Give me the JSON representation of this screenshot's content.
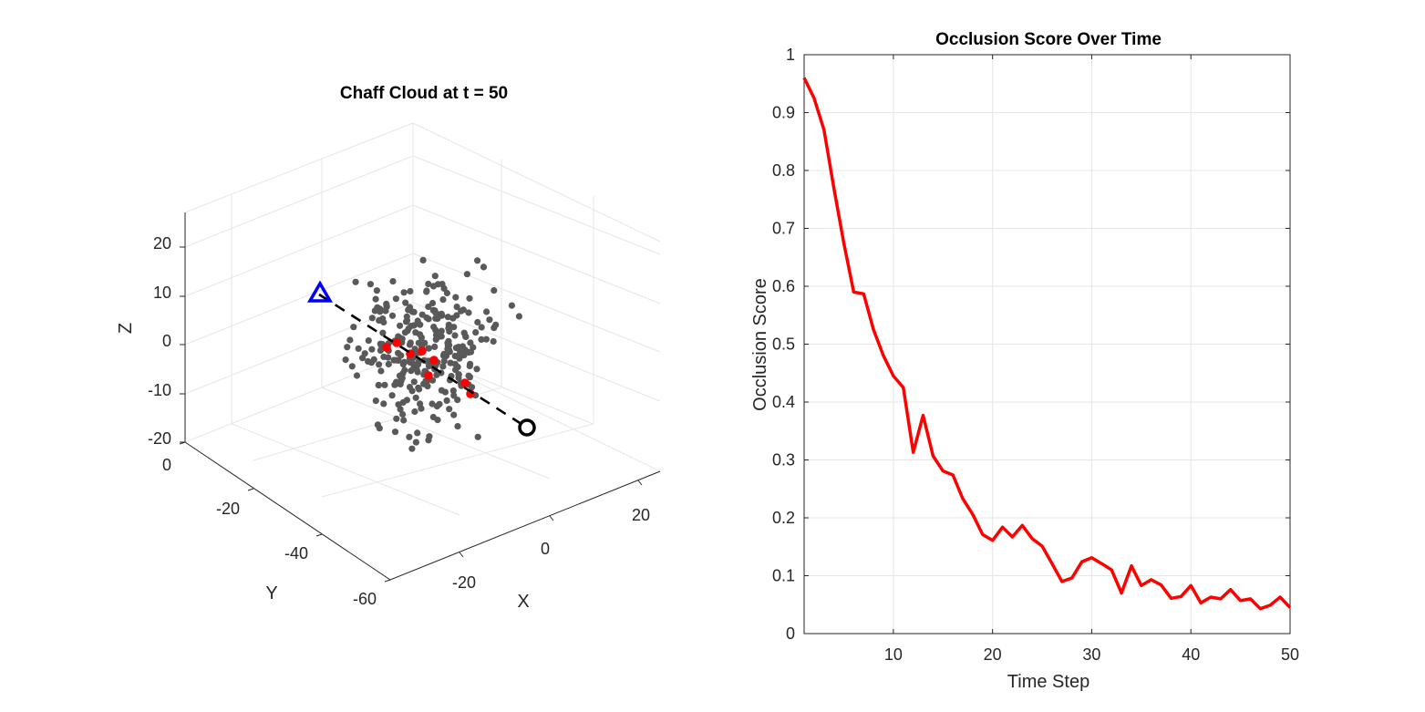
{
  "chart_data": [
    {
      "type": "scatter3d",
      "title": "Chaff Cloud at t = 50",
      "xlabel": "X",
      "ylabel": "Y",
      "zlabel": "Z",
      "x_ticks": [
        "-20",
        "0",
        "20"
      ],
      "y_ticks": [
        "0",
        "-20",
        "-40",
        "-60"
      ],
      "z_ticks": [
        "20",
        "10",
        "0",
        "-10",
        "-20"
      ],
      "xlim": [
        -35,
        35
      ],
      "ylim": [
        -60,
        0
      ],
      "zlim": [
        -20,
        25
      ],
      "grid": true,
      "series": [
        {
          "marker": "dot",
          "color": "#595959",
          "count": 300
        },
        {
          "marker": "dot",
          "color": "#ff0000",
          "count": 8
        },
        {
          "marker": "dashed-line",
          "color": "#000000"
        },
        {
          "marker": "triangle",
          "color": "#0000ff"
        },
        {
          "marker": "circle",
          "color": "#000000"
        }
      ]
    },
    {
      "type": "line",
      "title": "Occlusion Score Over Time",
      "xlabel": "Time Step",
      "ylabel": "Occlusion Score",
      "xlim": [
        1,
        50
      ],
      "ylim": [
        0,
        1
      ],
      "x_ticks": [
        10,
        20,
        30,
        40,
        50
      ],
      "y_ticks": [
        0,
        0.1,
        0.2,
        0.3,
        0.4,
        0.5,
        0.6,
        0.7,
        0.8,
        0.9,
        1
      ],
      "grid": true,
      "color": "#ff0000",
      "x": [
        1,
        2,
        3,
        4,
        5,
        6,
        7,
        8,
        9,
        10,
        11,
        12,
        13,
        14,
        15,
        16,
        17,
        18,
        19,
        20,
        21,
        22,
        23,
        24,
        25,
        26,
        27,
        28,
        29,
        30,
        31,
        32,
        33,
        34,
        35,
        36,
        37,
        38,
        39,
        40,
        41,
        42,
        43,
        44,
        45,
        46,
        47,
        48,
        49,
        50
      ],
      "y": [
        0.96,
        0.925,
        0.87,
        0.77,
        0.675,
        0.59,
        0.587,
        0.525,
        0.48,
        0.445,
        0.425,
        0.313,
        0.377,
        0.307,
        0.281,
        0.274,
        0.233,
        0.206,
        0.171,
        0.161,
        0.184,
        0.167,
        0.187,
        0.164,
        0.151,
        0.121,
        0.09,
        0.096,
        0.124,
        0.131,
        0.121,
        0.11,
        0.07,
        0.117,
        0.083,
        0.093,
        0.084,
        0.061,
        0.064,
        0.083,
        0.053,
        0.063,
        0.06,
        0.076,
        0.057,
        0.06,
        0.043,
        0.049,
        0.063,
        0.045
      ]
    }
  ]
}
